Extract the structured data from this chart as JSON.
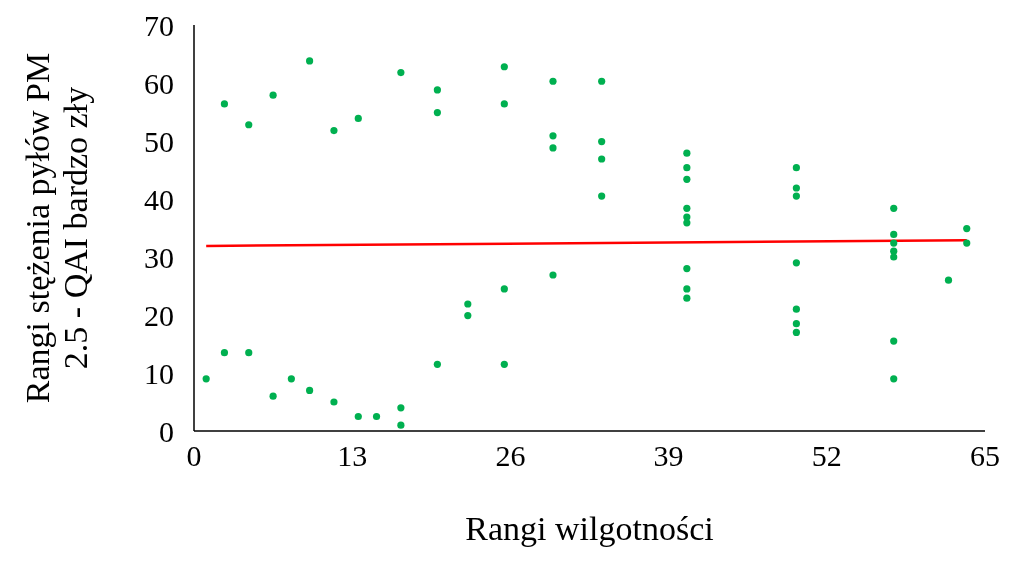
{
  "chart_data": {
    "type": "scatter",
    "xlabel": "Rangi wilgotności",
    "ylabel": "Rangi stężenia pyłów PM 2.5 - QAI bardzo zły",
    "xlim": [
      0,
      65
    ],
    "xticks": [
      0,
      13,
      26,
      39,
      52,
      65
    ],
    "ylim": [
      0,
      70
    ],
    "yticks": [
      0,
      10,
      20,
      30,
      40,
      50,
      60,
      70
    ],
    "grid": false,
    "legend": false,
    "series": [
      {
        "marker": "circle",
        "color": "#00b050",
        "x": [
          1,
          2.5,
          2.5,
          4.5,
          4.5,
          6.5,
          6.5,
          8,
          9.5,
          9.5,
          11.5,
          11.5,
          13.5,
          13.5,
          15,
          17,
          17,
          17,
          20,
          20,
          20,
          22.5,
          22.5,
          25.5,
          25.5,
          25.5,
          25.5,
          29.5,
          29.5,
          29.5,
          29.5,
          33.5,
          33.5,
          33.5,
          33.5,
          40.5,
          40.5,
          40.5,
          40.5,
          40.5,
          40.5,
          40.5,
          40.5,
          40.5,
          49.5,
          49.5,
          49.5,
          49.5,
          49.5,
          49.5,
          49.5,
          57.5,
          57.5,
          57.5,
          57.5,
          57.5,
          57.5,
          57.5,
          62,
          63.5,
          63.5
        ],
        "values": [
          9,
          56.4,
          13.5,
          52.8,
          13.5,
          57.9,
          6,
          9,
          63.8,
          7,
          51.8,
          5,
          53.9,
          2.5,
          2.5,
          61.8,
          4,
          1,
          58.8,
          54.9,
          11.5,
          21.9,
          19.9,
          62.8,
          56.4,
          24.5,
          11.5,
          60.3,
          50.9,
          48.8,
          26.9,
          60.3,
          49.9,
          46.9,
          40.5,
          47.9,
          45.4,
          43.4,
          38.4,
          36.9,
          35.9,
          28,
          24.5,
          22.9,
          45.4,
          41.9,
          40.5,
          29,
          21,
          18.5,
          17,
          38.4,
          33.9,
          32.4,
          31,
          30,
          15.5,
          9,
          26,
          34.9,
          32.4
        ]
      },
      {
        "type": "line",
        "color": "#ff0000",
        "x": [
          1,
          63.5
        ],
        "values": [
          31.9,
          32.9
        ],
        "line_style": "solid",
        "marker": "none"
      }
    ]
  }
}
